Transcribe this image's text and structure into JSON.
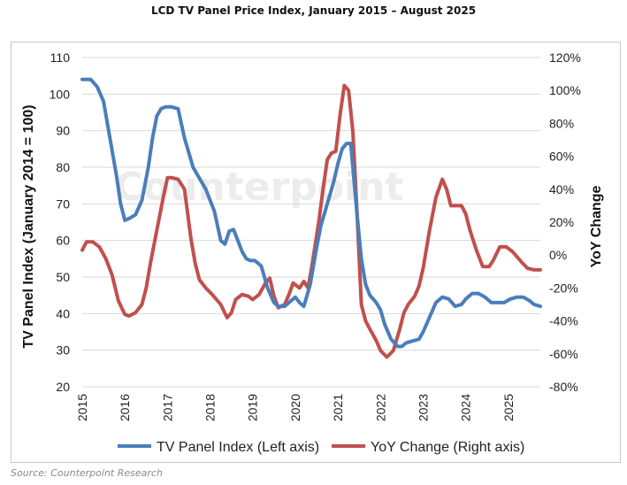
{
  "title": "LCD TV Panel Price Index, January 2015 – August 2025",
  "source": "Source: Counterpoint Research",
  "watermark": "Counterpoint",
  "chart_data": {
    "type": "line",
    "title": "LCD TV Panel Price Index, January 2015 – August 2025",
    "xlabel": "",
    "ylabel_left": "TV Panel Index (January 2014 = 100)",
    "ylabel_right": "YoY Change",
    "x_ticks": [
      "2015",
      "2016",
      "2017",
      "2018",
      "2019",
      "2020",
      "2021",
      "2022",
      "2023",
      "2024",
      "2025"
    ],
    "xlim": [
      2015.0,
      2025.75
    ],
    "y_left_lim": [
      20,
      110
    ],
    "y_left_ticks": [
      "20",
      "30",
      "40",
      "50",
      "60",
      "70",
      "80",
      "90",
      "100",
      "110"
    ],
    "y_right_lim": [
      -80,
      120
    ],
    "y_right_ticks": [
      "-80%",
      "-60%",
      "-40%",
      "-20%",
      "0%",
      "20%",
      "40%",
      "60%",
      "80%",
      "100%",
      "120%"
    ],
    "grid": "horizontal",
    "legend": "bottom",
    "colors": {
      "index": "#4a7ebb",
      "yoy": "#c0504d"
    },
    "series": [
      {
        "name": "TV Panel Index (Left axis)",
        "axis": "left",
        "x": [
          2015.0,
          2015.2,
          2015.35,
          2015.5,
          2015.65,
          2015.8,
          2015.9,
          2016.0,
          2016.1,
          2016.25,
          2016.4,
          2016.55,
          2016.65,
          2016.75,
          2016.85,
          2016.95,
          2017.1,
          2017.25,
          2017.4,
          2017.5,
          2017.6,
          2017.75,
          2017.9,
          2018.1,
          2018.25,
          2018.35,
          2018.45,
          2018.55,
          2018.65,
          2018.75,
          2018.85,
          2018.95,
          2019.05,
          2019.2,
          2019.35,
          2019.5,
          2019.6,
          2019.75,
          2019.9,
          2020.0,
          2020.1,
          2020.2,
          2020.35,
          2020.5,
          2020.6,
          2020.75,
          2020.9,
          2021.0,
          2021.1,
          2021.2,
          2021.3,
          2021.45,
          2021.55,
          2021.65,
          2021.75,
          2021.9,
          2022.0,
          2022.1,
          2022.25,
          2022.4,
          2022.5,
          2022.6,
          2022.75,
          2022.9,
          2023.0,
          2023.15,
          2023.3,
          2023.45,
          2023.6,
          2023.75,
          2023.9,
          2024.0,
          2024.15,
          2024.3,
          2024.45,
          2024.6,
          2024.75,
          2024.9,
          2025.05,
          2025.2,
          2025.35,
          2025.5,
          2025.6,
          2025.75
        ],
        "values": [
          104,
          104,
          102,
          98,
          88,
          78,
          70,
          65.5,
          66,
          67,
          71,
          80,
          88,
          94,
          96,
          96.5,
          96.5,
          96,
          88,
          84,
          80,
          77,
          74,
          68,
          60,
          59,
          62.5,
          63,
          60,
          57,
          55,
          54.5,
          54.5,
          53,
          47,
          43,
          42,
          42,
          43.5,
          44.5,
          43,
          42,
          48,
          58,
          64,
          70,
          76,
          81,
          85,
          86.5,
          86.5,
          67,
          55,
          48,
          45,
          43,
          41,
          37,
          33,
          31,
          31,
          32,
          32.5,
          33,
          35,
          39,
          43,
          44.5,
          44,
          42,
          42.5,
          44,
          45.5,
          45.5,
          44.5,
          43,
          43,
          43,
          44,
          44.5,
          44.5,
          43.5,
          42.5,
          42
        ]
      },
      {
        "name": "YoY Change (Right axis)",
        "axis": "right",
        "x": [
          2015.0,
          2015.1,
          2015.25,
          2015.4,
          2015.55,
          2015.7,
          2015.85,
          2016.0,
          2016.1,
          2016.25,
          2016.4,
          2016.5,
          2016.6,
          2016.75,
          2016.9,
          2017.0,
          2017.1,
          2017.25,
          2017.4,
          2017.55,
          2017.65,
          2017.75,
          2017.9,
          2018.05,
          2018.25,
          2018.4,
          2018.5,
          2018.6,
          2018.75,
          2018.9,
          2019.0,
          2019.15,
          2019.3,
          2019.4,
          2019.5,
          2019.6,
          2019.75,
          2019.85,
          2019.95,
          2020.1,
          2020.2,
          2020.3,
          2020.4,
          2020.55,
          2020.65,
          2020.75,
          2020.85,
          2020.95,
          2021.05,
          2021.15,
          2021.25,
          2021.35,
          2021.45,
          2021.55,
          2021.65,
          2021.75,
          2021.9,
          2022.0,
          2022.15,
          2022.3,
          2022.45,
          2022.55,
          2022.65,
          2022.8,
          2022.9,
          2023.0,
          2023.15,
          2023.3,
          2023.45,
          2023.55,
          2023.65,
          2023.75,
          2023.9,
          2024.0,
          2024.1,
          2024.25,
          2024.4,
          2024.55,
          2024.65,
          2024.8,
          2024.95,
          2025.1,
          2025.3,
          2025.45,
          2025.6,
          2025.75
        ],
        "values": [
          3,
          8,
          8,
          5,
          -2,
          -12,
          -28,
          -36,
          -37,
          -35,
          -30,
          -20,
          -5,
          15,
          35,
          47,
          47,
          46,
          40,
          10,
          -5,
          -15,
          -20,
          -24,
          -30,
          -38,
          -35,
          -27,
          -24,
          -25,
          -27,
          -24,
          -17,
          -14,
          -25,
          -32,
          -30,
          -24,
          -17,
          -20,
          -16,
          -20,
          -5,
          20,
          40,
          58,
          62,
          63,
          85,
          103,
          100,
          75,
          25,
          -30,
          -40,
          -45,
          -52,
          -58,
          -62,
          -58,
          -45,
          -35,
          -30,
          -25,
          -19,
          -8,
          15,
          35,
          46,
          40,
          30,
          30,
          30,
          25,
          15,
          3,
          -7,
          -7,
          -3,
          5,
          5,
          2,
          -4,
          -8,
          -9,
          -9
        ]
      }
    ]
  }
}
